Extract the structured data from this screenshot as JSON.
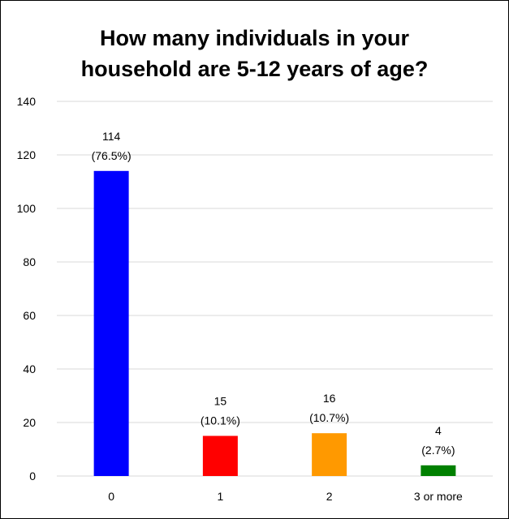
{
  "chart_data": {
    "type": "bar",
    "title_lines": [
      "How many individuals in your",
      "household are 5-12 years of age?"
    ],
    "categories": [
      "0",
      "1",
      "2",
      "3 or more"
    ],
    "values": [
      114,
      15,
      16,
      4
    ],
    "value_labels": [
      "114",
      "15",
      "16",
      "4"
    ],
    "percent_labels": [
      "(76.5%)",
      "(10.1%)",
      "(10.7%)",
      "(2.7%)"
    ],
    "colors": [
      "#0000FF",
      "#FF0000",
      "#FF9900",
      "#008000"
    ],
    "y_ticks": [
      "0",
      "20",
      "40",
      "60",
      "80",
      "100",
      "120",
      "140"
    ],
    "ylim": [
      0,
      140
    ],
    "grid": true,
    "legend": "none",
    "xlabel": "",
    "ylabel": ""
  }
}
